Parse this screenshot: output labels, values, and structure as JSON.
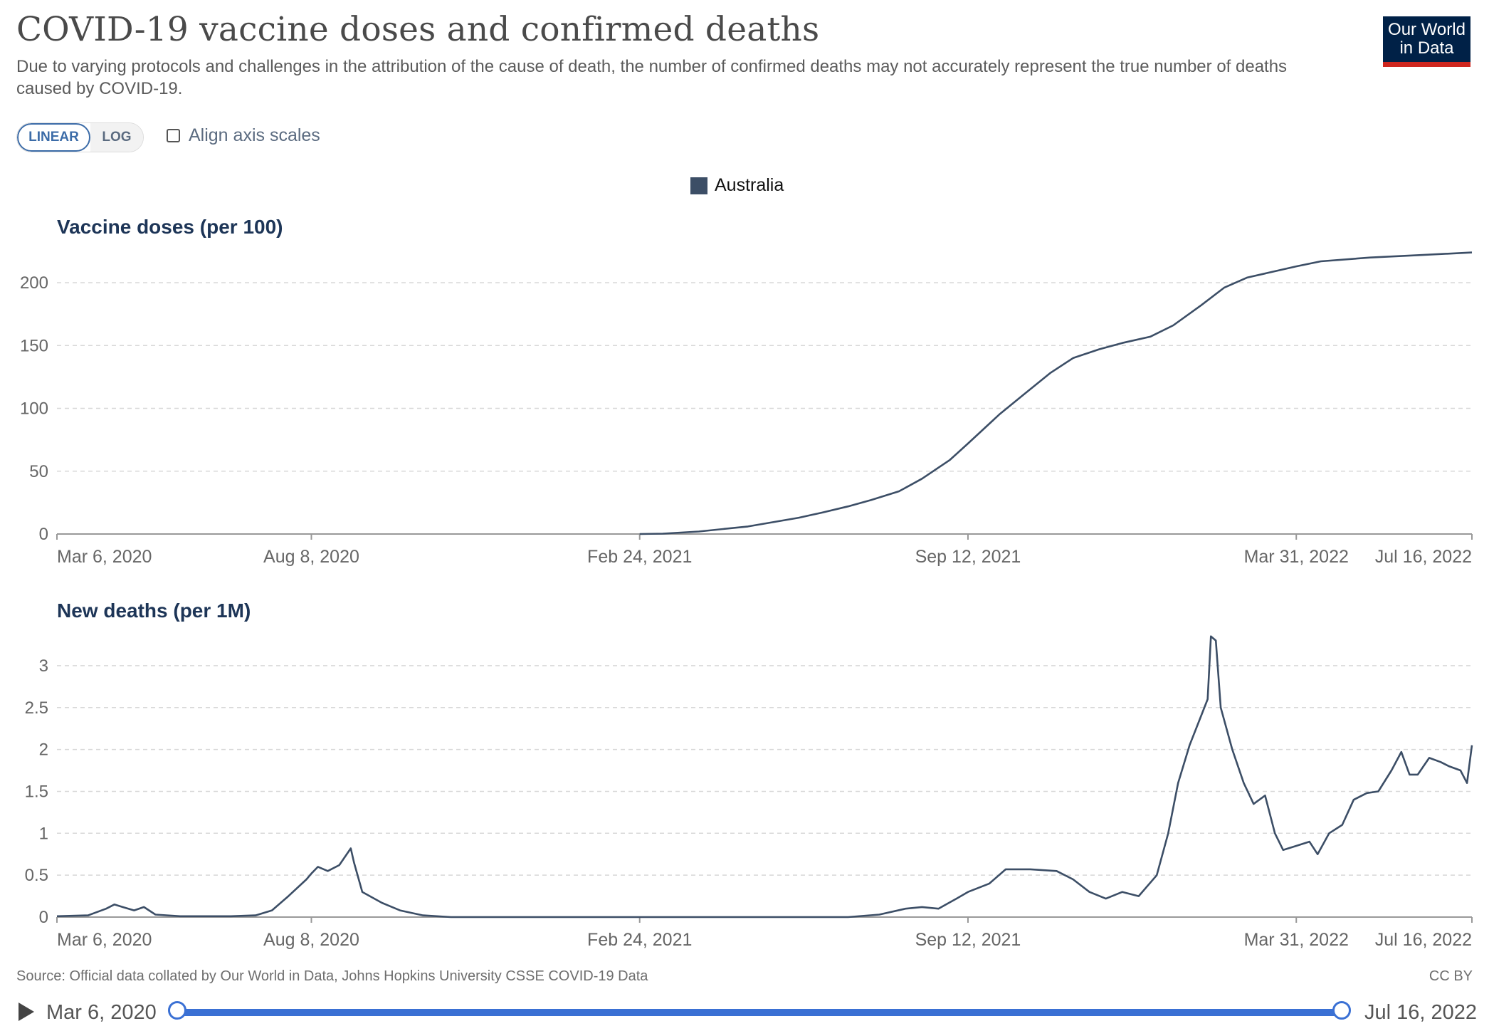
{
  "title": "COVID-19 vaccine doses and confirmed deaths",
  "subtitle": "Due to varying protocols and challenges in the attribution of the cause of death, the number of confirmed deaths may not accurately represent the true number of deaths caused by COVID-19.",
  "logo": {
    "line1": "Our World",
    "line2": "in Data",
    "bg_color": "#002147",
    "accent_color": "#ce261e"
  },
  "controls": {
    "linear_label": "LINEAR",
    "log_label": "LOG",
    "selected": "LINEAR",
    "align_label": "Align axis scales",
    "align_checked": false
  },
  "legend": {
    "entity": "Australia",
    "color": "#3c4e66"
  },
  "source": "Source: Official data collated by Our World in Data, Johns Hopkins University CSSE COVID-19 Data",
  "license": "CC BY",
  "timeline": {
    "start": "Mar 6, 2020",
    "end": "Jul 16, 2022"
  },
  "chart_data": [
    {
      "type": "line",
      "title": "Vaccine doses (per 100)",
      "x_start": "2020-03-06",
      "x_end": "2022-07-16",
      "x_ticks": [
        "Mar 6, 2020",
        "Aug 8, 2020",
        "Feb 24, 2021",
        "Sep 12, 2021",
        "Mar 31, 2022",
        "Jul 16, 2022"
      ],
      "x_tick_dates": [
        "2020-03-06",
        "2020-08-08",
        "2021-02-24",
        "2021-09-12",
        "2022-03-31",
        "2022-07-16"
      ],
      "y_ticks": [
        "0",
        "50",
        "100",
        "150",
        "200"
      ],
      "ylim": [
        0,
        225
      ],
      "grid": true,
      "series": [
        {
          "name": "Australia",
          "color": "#3c4e66",
          "points": [
            [
              "2021-02-24",
              0
            ],
            [
              "2021-03-10",
              0.3
            ],
            [
              "2021-04-01",
              2
            ],
            [
              "2021-05-01",
              6
            ],
            [
              "2021-06-01",
              13
            ],
            [
              "2021-06-15",
              17
            ],
            [
              "2021-07-01",
              22
            ],
            [
              "2021-07-15",
              27
            ],
            [
              "2021-08-01",
              34
            ],
            [
              "2021-08-15",
              44
            ],
            [
              "2021-09-01",
              59
            ],
            [
              "2021-09-12",
              72
            ],
            [
              "2021-10-01",
              95
            ],
            [
              "2021-10-15",
              110
            ],
            [
              "2021-11-01",
              128
            ],
            [
              "2021-11-15",
              140
            ],
            [
              "2021-12-01",
              147
            ],
            [
              "2021-12-15",
              152
            ],
            [
              "2022-01-01",
              157
            ],
            [
              "2022-01-15",
              166
            ],
            [
              "2022-02-01",
              182
            ],
            [
              "2022-02-15",
              196
            ],
            [
              "2022-03-01",
              204
            ],
            [
              "2022-03-31",
              213
            ],
            [
              "2022-04-15",
              217
            ],
            [
              "2022-05-15",
              220
            ],
            [
              "2022-06-15",
              222
            ],
            [
              "2022-07-16",
              224
            ]
          ]
        }
      ]
    },
    {
      "type": "line",
      "title": "New deaths (per 1M)",
      "x_start": "2020-03-06",
      "x_end": "2022-07-16",
      "x_ticks": [
        "Mar 6, 2020",
        "Aug 8, 2020",
        "Feb 24, 2021",
        "Sep 12, 2021",
        "Mar 31, 2022",
        "Jul 16, 2022"
      ],
      "x_tick_dates": [
        "2020-03-06",
        "2020-08-08",
        "2021-02-24",
        "2021-09-12",
        "2022-03-31",
        "2022-07-16"
      ],
      "y_ticks": [
        "0",
        "0.5",
        "1",
        "1.5",
        "2",
        "2.5",
        "3"
      ],
      "ylim": [
        0,
        3.4
      ],
      "grid": true,
      "series": [
        {
          "name": "Australia",
          "color": "#3c4e66",
          "points": [
            [
              "2020-03-06",
              0.01
            ],
            [
              "2020-03-25",
              0.02
            ],
            [
              "2020-04-05",
              0.1
            ],
            [
              "2020-04-10",
              0.15
            ],
            [
              "2020-04-15",
              0.12
            ],
            [
              "2020-04-22",
              0.08
            ],
            [
              "2020-04-28",
              0.12
            ],
            [
              "2020-05-05",
              0.03
            ],
            [
              "2020-05-20",
              0.01
            ],
            [
              "2020-06-20",
              0.01
            ],
            [
              "2020-07-05",
              0.02
            ],
            [
              "2020-07-15",
              0.08
            ],
            [
              "2020-07-25",
              0.25
            ],
            [
              "2020-08-05",
              0.45
            ],
            [
              "2020-08-08",
              0.52
            ],
            [
              "2020-08-12",
              0.6
            ],
            [
              "2020-08-18",
              0.55
            ],
            [
              "2020-08-25",
              0.62
            ],
            [
              "2020-09-01",
              0.82
            ],
            [
              "2020-09-03",
              0.65
            ],
            [
              "2020-09-08",
              0.3
            ],
            [
              "2020-09-20",
              0.17
            ],
            [
              "2020-10-01",
              0.08
            ],
            [
              "2020-10-15",
              0.02
            ],
            [
              "2020-11-01",
              0.0
            ],
            [
              "2021-02-24",
              0.0
            ],
            [
              "2021-07-01",
              0.0
            ],
            [
              "2021-07-20",
              0.03
            ],
            [
              "2021-08-05",
              0.1
            ],
            [
              "2021-08-15",
              0.12
            ],
            [
              "2021-08-25",
              0.1
            ],
            [
              "2021-09-05",
              0.22
            ],
            [
              "2021-09-12",
              0.3
            ],
            [
              "2021-09-25",
              0.4
            ],
            [
              "2021-10-05",
              0.57
            ],
            [
              "2021-10-20",
              0.57
            ],
            [
              "2021-11-05",
              0.55
            ],
            [
              "2021-11-15",
              0.45
            ],
            [
              "2021-11-25",
              0.3
            ],
            [
              "2021-12-05",
              0.22
            ],
            [
              "2021-12-15",
              0.3
            ],
            [
              "2021-12-25",
              0.25
            ],
            [
              "2022-01-05",
              0.5
            ],
            [
              "2022-01-12",
              1.0
            ],
            [
              "2022-01-18",
              1.6
            ],
            [
              "2022-01-25",
              2.05
            ],
            [
              "2022-02-01",
              2.4
            ],
            [
              "2022-02-05",
              2.6
            ],
            [
              "2022-02-07",
              3.35
            ],
            [
              "2022-02-10",
              3.3
            ],
            [
              "2022-02-13",
              2.5
            ],
            [
              "2022-02-20",
              2.0
            ],
            [
              "2022-02-27",
              1.6
            ],
            [
              "2022-03-05",
              1.35
            ],
            [
              "2022-03-12",
              1.45
            ],
            [
              "2022-03-18",
              1.0
            ],
            [
              "2022-03-23",
              0.8
            ],
            [
              "2022-03-31",
              0.85
            ],
            [
              "2022-04-08",
              0.9
            ],
            [
              "2022-04-13",
              0.75
            ],
            [
              "2022-04-20",
              1.0
            ],
            [
              "2022-04-28",
              1.1
            ],
            [
              "2022-05-05",
              1.4
            ],
            [
              "2022-05-13",
              1.48
            ],
            [
              "2022-05-20",
              1.5
            ],
            [
              "2022-05-28",
              1.75
            ],
            [
              "2022-06-03",
              1.97
            ],
            [
              "2022-06-08",
              1.7
            ],
            [
              "2022-06-13",
              1.7
            ],
            [
              "2022-06-20",
              1.9
            ],
            [
              "2022-06-27",
              1.85
            ],
            [
              "2022-07-02",
              1.8
            ],
            [
              "2022-07-09",
              1.75
            ],
            [
              "2022-07-13",
              1.6
            ],
            [
              "2022-07-16",
              2.05
            ]
          ]
        }
      ]
    }
  ]
}
